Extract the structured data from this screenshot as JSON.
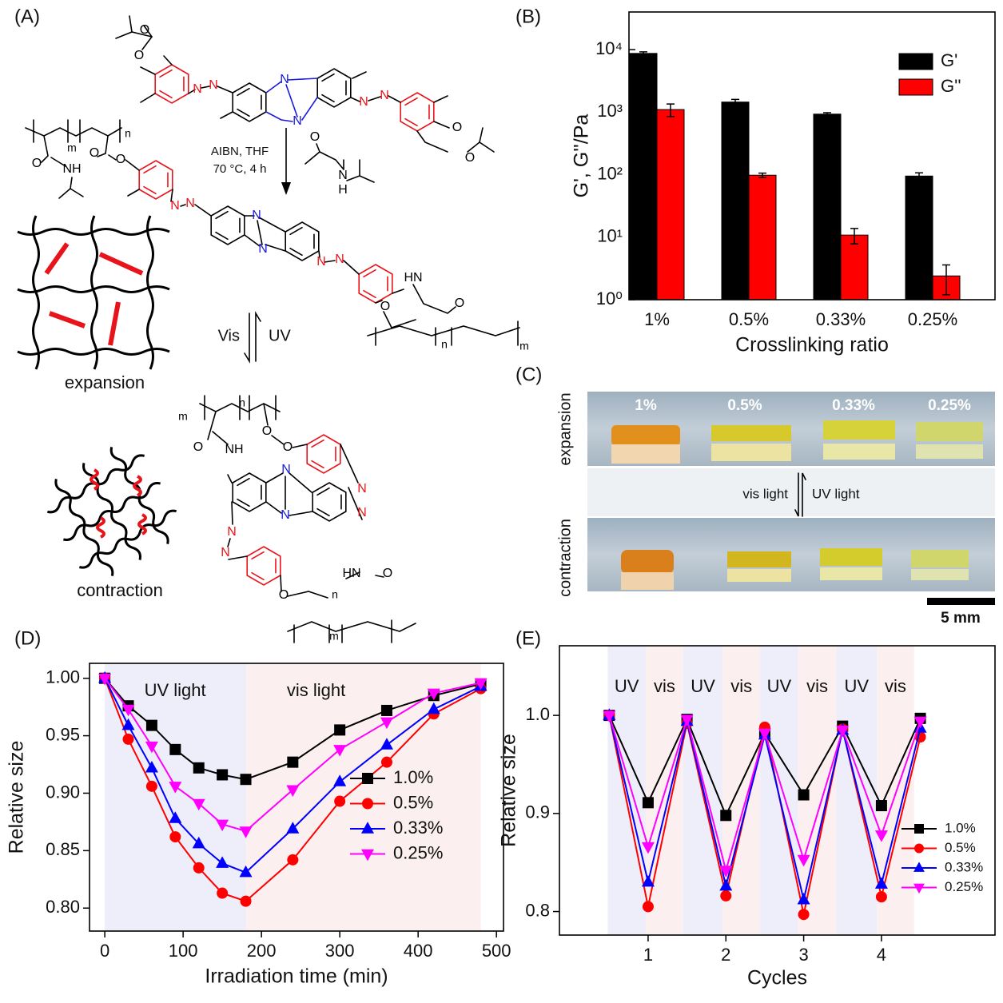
{
  "scheme": {
    "label": "(A)",
    "reagents": [
      "AIBN, THF",
      "70 °C, 4 h"
    ],
    "forward": "Vis",
    "backward": "UV",
    "states": [
      "expansion",
      "contraction"
    ],
    "atoms": [
      "O",
      "O",
      "N",
      "N",
      "N",
      "N",
      "N",
      "N",
      "O",
      "O",
      "m",
      "n",
      "O",
      "NH",
      "O",
      "O",
      "O",
      "N",
      "H",
      "N",
      "N",
      "N",
      "N",
      "N",
      "N",
      "HN",
      "O",
      "O",
      "n",
      "m",
      "m",
      "n",
      "O",
      "NH",
      "O",
      "O",
      "N",
      "N",
      "N",
      "N",
      "N",
      "N",
      "HN",
      "O",
      "O",
      "n",
      "m"
    ]
  },
  "photo": {
    "label": "(C)",
    "samples": [
      "1%",
      "0.5%",
      "0.33%",
      "0.25%"
    ],
    "rows": [
      "expansion",
      "contraction"
    ],
    "forward": "vis light",
    "backward": "UV light",
    "scale_bar": "5 mm"
  },
  "chart_data": [
    {
      "type": "bar",
      "label": "(B)",
      "xlabel": "Crosslinking ratio",
      "ylabel": "G', G''/Pa",
      "categories": [
        "1%",
        "0.5%",
        "0.33%",
        "0.25%"
      ],
      "series": [
        {
          "name": "G'",
          "color": "#000000",
          "values": [
            8700,
            1450,
            930,
            95
          ],
          "errors": [
            500,
            150,
            50,
            12
          ]
        },
        {
          "name": "G''",
          "color": "#ff0000",
          "values": [
            1100,
            98,
            10.8,
            2.4
          ],
          "errors": [
            250,
            8,
            3,
            1.2
          ]
        }
      ],
      "log_y": true,
      "ylim": [
        1,
        40000
      ],
      "yticks": [
        {
          "value": 1,
          "label": "10⁰"
        },
        {
          "value": 10,
          "label": "10¹"
        },
        {
          "value": 100,
          "label": "10²"
        },
        {
          "value": 1000,
          "label": "10³"
        },
        {
          "value": 10000,
          "label": "10⁴"
        }
      ],
      "legend": "top-right"
    },
    {
      "type": "line",
      "label": "(D)",
      "xlabel": "Irradiation time (min)",
      "ylabel": "Relative size",
      "x": [
        0,
        30,
        60,
        90,
        120,
        150,
        180,
        240,
        300,
        360,
        420,
        480
      ],
      "series": [
        {
          "name": "1.0%",
          "color": "#000000",
          "marker": "square",
          "values": [
            1.0,
            0.976,
            0.959,
            0.938,
            0.922,
            0.916,
            0.912,
            0.927,
            0.955,
            0.972,
            0.985,
            0.995
          ]
        },
        {
          "name": "0.5%",
          "color": "#ff0000",
          "marker": "circle",
          "values": [
            1.0,
            0.947,
            0.906,
            0.862,
            0.835,
            0.813,
            0.806,
            0.842,
            0.893,
            0.927,
            0.969,
            0.991
          ]
        },
        {
          "name": "0.33%",
          "color": "#0000ff",
          "marker": "triangle-up",
          "values": [
            1.0,
            0.959,
            0.922,
            0.878,
            0.856,
            0.839,
            0.831,
            0.869,
            0.91,
            0.942,
            0.973,
            0.993
          ]
        },
        {
          "name": "0.25%",
          "color": "#ff00ff",
          "marker": "triangle-down",
          "values": [
            1.0,
            0.973,
            0.941,
            0.906,
            0.891,
            0.873,
            0.867,
            0.903,
            0.938,
            0.962,
            0.987,
            0.996
          ]
        }
      ],
      "bands": [
        {
          "label": "UV light",
          "range": [
            0,
            180
          ],
          "color": "#eeeefa"
        },
        {
          "label": "vis light",
          "range": [
            180,
            480
          ],
          "color": "#fcefef"
        }
      ],
      "xlim": [
        -19.5,
        509
      ],
      "ylim": [
        0.78,
        1.013
      ],
      "xticks": [
        0,
        100,
        200,
        300,
        400,
        500
      ],
      "yticks": [
        {
          "value": 1.0,
          "label": "1.00"
        },
        0.95,
        {
          "value": 0.9,
          "label": "0.90"
        },
        0.85,
        {
          "value": 0.8,
          "label": "0.80"
        }
      ],
      "legend": "bottom-right"
    },
    {
      "type": "line",
      "label": "(E)",
      "xlabel": "Cycles",
      "ylabel": "Relative size",
      "x": [
        0.5,
        1,
        1.5,
        2,
        2.5,
        3,
        3.5,
        4,
        4.5
      ],
      "series": [
        {
          "name": "1.0%",
          "color": "#000000",
          "marker": "square",
          "values": [
            1.0,
            0.911,
            0.996,
            0.898,
            0.982,
            0.919,
            0.989,
            0.908,
            0.997
          ]
        },
        {
          "name": "0.5%",
          "color": "#ff0000",
          "marker": "circle",
          "values": [
            1.0,
            0.805,
            0.992,
            0.816,
            0.988,
            0.797,
            0.986,
            0.815,
            0.978
          ]
        },
        {
          "name": "0.33%",
          "color": "#0000ff",
          "marker": "triangle-up",
          "values": [
            1.0,
            0.83,
            0.994,
            0.826,
            0.98,
            0.812,
            0.985,
            0.828,
            0.987
          ]
        },
        {
          "name": "0.25%",
          "color": "#ff00ff",
          "marker": "triangle-down",
          "values": [
            1.0,
            0.866,
            0.996,
            0.842,
            0.982,
            0.853,
            0.985,
            0.878,
            0.994
          ]
        }
      ],
      "bands": [
        {
          "label": "UV",
          "range": [
            0.48,
            0.97
          ],
          "color": "#eeeefa"
        },
        {
          "label": "vis",
          "range": [
            0.97,
            1.45
          ],
          "color": "#fcefef"
        },
        {
          "label": "UV",
          "range": [
            1.45,
            1.96
          ],
          "color": "#eeeefa"
        },
        {
          "label": "vis",
          "range": [
            1.96,
            2.44
          ],
          "color": "#fcefef"
        },
        {
          "label": "UV",
          "range": [
            2.44,
            2.93
          ],
          "color": "#eeeefa"
        },
        {
          "label": "vis",
          "range": [
            2.93,
            3.42
          ],
          "color": "#fcefef"
        },
        {
          "label": "UV",
          "range": [
            3.42,
            3.94
          ],
          "color": "#eeeefa"
        },
        {
          "label": "vis",
          "range": [
            3.94,
            4.42
          ],
          "color": "#fcefef"
        }
      ],
      "xlim": [
        -0.14,
        5.46
      ],
      "ylim": [
        0.776,
        1.071
      ],
      "xticks": [
        1,
        2,
        3,
        4
      ],
      "yticks": [
        {
          "value": 1.0,
          "label": "1.0"
        },
        0.9,
        0.8
      ],
      "legend": "bottom-right"
    }
  ]
}
